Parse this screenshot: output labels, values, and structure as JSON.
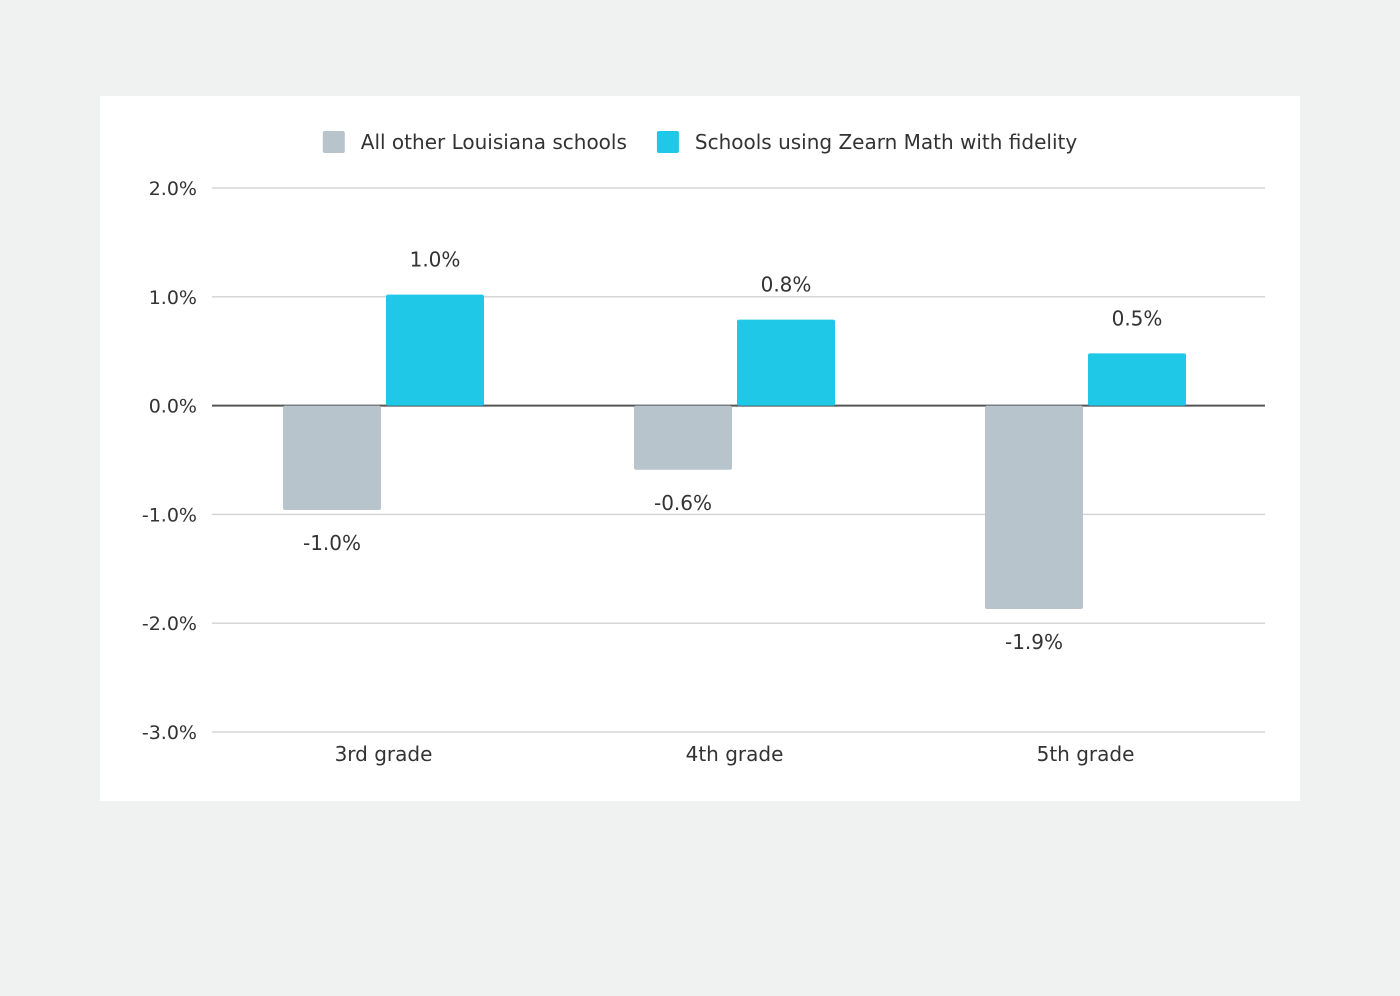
{
  "chart_data": {
    "type": "bar",
    "categories": [
      "3rd grade",
      "4th grade",
      "5th grade"
    ],
    "series": [
      {
        "name": "All other Louisiana schools",
        "color": "#b8c4cc",
        "values": [
          -0.96,
          -0.59,
          -1.87
        ],
        "labels": [
          "-1.0%",
          "-0.6%",
          "-1.9%"
        ]
      },
      {
        "name": "Schools using Zearn Math with fidelity",
        "color": "#1ec8e6",
        "values": [
          1.02,
          0.79,
          0.48
        ],
        "labels": [
          "1.0%",
          "0.8%",
          "0.5%"
        ]
      }
    ],
    "ylim": [
      -3,
      2
    ],
    "yticks": [
      2,
      1,
      0,
      -1,
      -2,
      -3
    ],
    "ytick_labels": [
      "2.0%",
      "1.0%",
      "0.0%",
      "-1.0%",
      "-2.0%",
      "-3.0%"
    ],
    "grid": true,
    "legend_position": "top-center"
  }
}
